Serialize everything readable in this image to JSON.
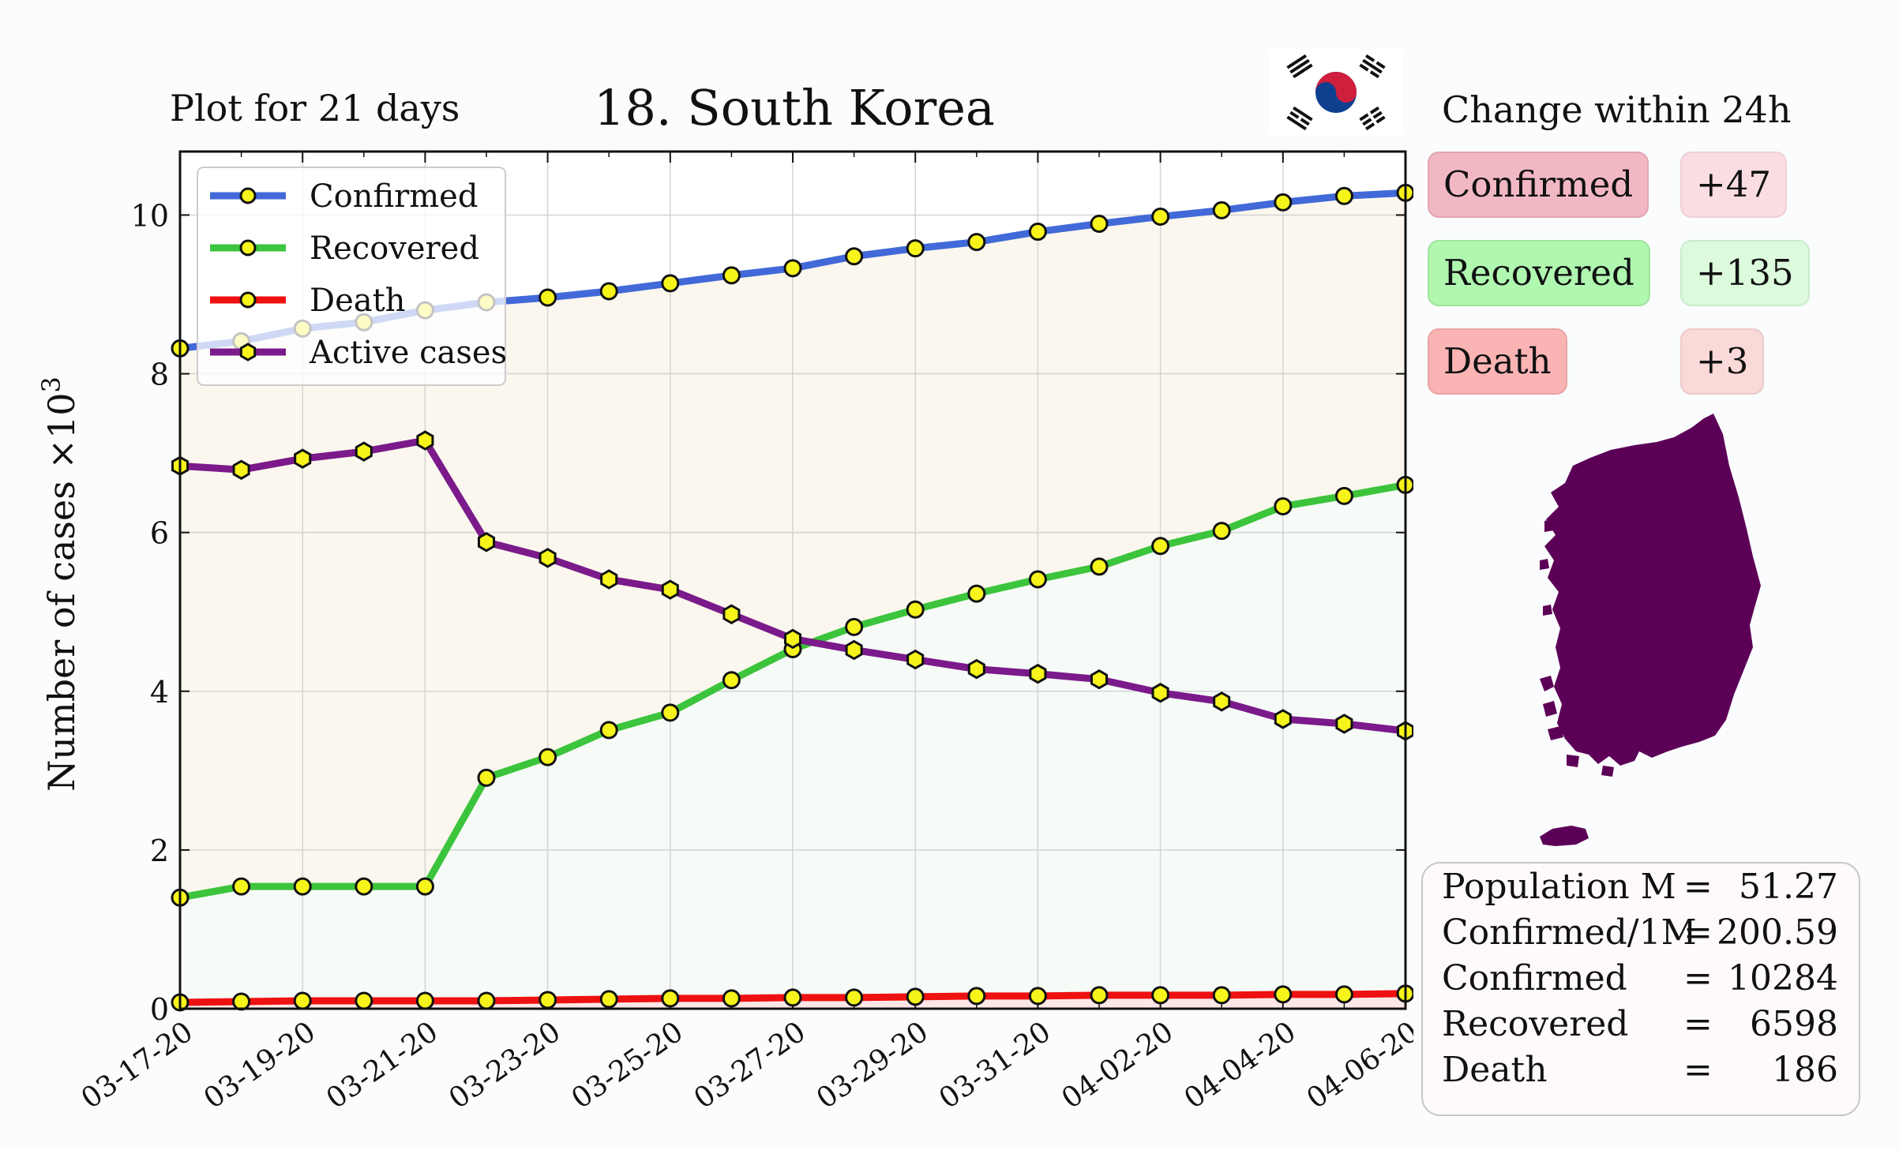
{
  "header": {
    "subtitle": "Plot for 21 days",
    "title": "18. South Korea"
  },
  "chart_data": {
    "type": "line",
    "ylabel": "Number of cases ×10",
    "ylabel_exponent": "3",
    "ylim": [
      0,
      10.8
    ],
    "yticks": [
      "0",
      "2",
      "4",
      "6",
      "8",
      "10"
    ],
    "x": [
      "03-17-20",
      "03-18-20",
      "03-19-20",
      "03-20-20",
      "03-21-20",
      "03-22-20",
      "03-23-20",
      "03-24-20",
      "03-25-20",
      "03-26-20",
      "03-27-20",
      "03-28-20",
      "03-29-20",
      "03-30-20",
      "03-31-20",
      "04-01-20",
      "04-02-20",
      "04-03-20",
      "04-04-20",
      "04-05-20",
      "04-06-20"
    ],
    "xtick_labels": [
      "03-17-20",
      "03-19-20",
      "03-21-20",
      "03-23-20",
      "03-25-20",
      "03-27-20",
      "03-29-20",
      "03-31-20",
      "04-02-20",
      "04-04-20",
      "04-06-20"
    ],
    "grid": true,
    "legend_position": "top-left",
    "series": [
      {
        "name": "Confirmed",
        "color": "#4169d8",
        "values": [
          8.32,
          8.41,
          8.57,
          8.65,
          8.8,
          8.9,
          8.96,
          9.04,
          9.14,
          9.24,
          9.33,
          9.48,
          9.58,
          9.66,
          9.79,
          9.89,
          9.98,
          10.06,
          10.16,
          10.24,
          10.28
        ]
      },
      {
        "name": "Recovered",
        "color": "#3cc43c",
        "values": [
          1.4,
          1.54,
          1.54,
          1.54,
          1.54,
          2.91,
          3.17,
          3.51,
          3.73,
          4.14,
          4.53,
          4.81,
          5.03,
          5.23,
          5.41,
          5.57,
          5.83,
          6.02,
          6.33,
          6.46,
          6.6
        ]
      },
      {
        "name": "Death",
        "color": "#ee1111",
        "values": [
          0.08,
          0.09,
          0.1,
          0.1,
          0.1,
          0.1,
          0.11,
          0.12,
          0.13,
          0.13,
          0.14,
          0.14,
          0.15,
          0.16,
          0.16,
          0.17,
          0.17,
          0.17,
          0.18,
          0.18,
          0.19
        ]
      },
      {
        "name": "Active cases",
        "color": "#7b1a8a",
        "values": [
          6.84,
          6.79,
          6.93,
          7.02,
          7.16,
          5.88,
          5.68,
          5.41,
          5.28,
          4.97,
          4.66,
          4.52,
          4.4,
          4.28,
          4.22,
          4.15,
          3.98,
          3.87,
          3.65,
          3.59,
          3.5
        ]
      }
    ]
  },
  "change_panel": {
    "title": "Change within 24h",
    "items": [
      {
        "label": "Confirmed",
        "delta": "+47"
      },
      {
        "label": "Recovered",
        "delta": "+135"
      },
      {
        "label": "Death",
        "delta": "+3"
      }
    ]
  },
  "colors": {
    "confirmed_chip": "#f1b8c4",
    "confirmed_delta": "#f9dde2",
    "recovered_chip": "#b0f7b0",
    "recovered_delta": "#dcfadc",
    "death_chip": "#fbb4b4",
    "death_delta": "#fad9d9",
    "map_fill": "#5c0057"
  },
  "flag_icon": "south-korea-flag-icon",
  "map_icon": "south-korea-map-icon",
  "stats": {
    "rows": [
      {
        "label": "Population M",
        "eq": "=",
        "value": "51.27"
      },
      {
        "label": "Confirmed/1M",
        "eq": "=",
        "value": "200.59"
      },
      {
        "label": "Confirmed",
        "eq": "=",
        "value": "10284"
      },
      {
        "label": "Recovered",
        "eq": "=",
        "value": "6598"
      },
      {
        "label": "Death",
        "eq": "=",
        "value": "186"
      }
    ]
  }
}
